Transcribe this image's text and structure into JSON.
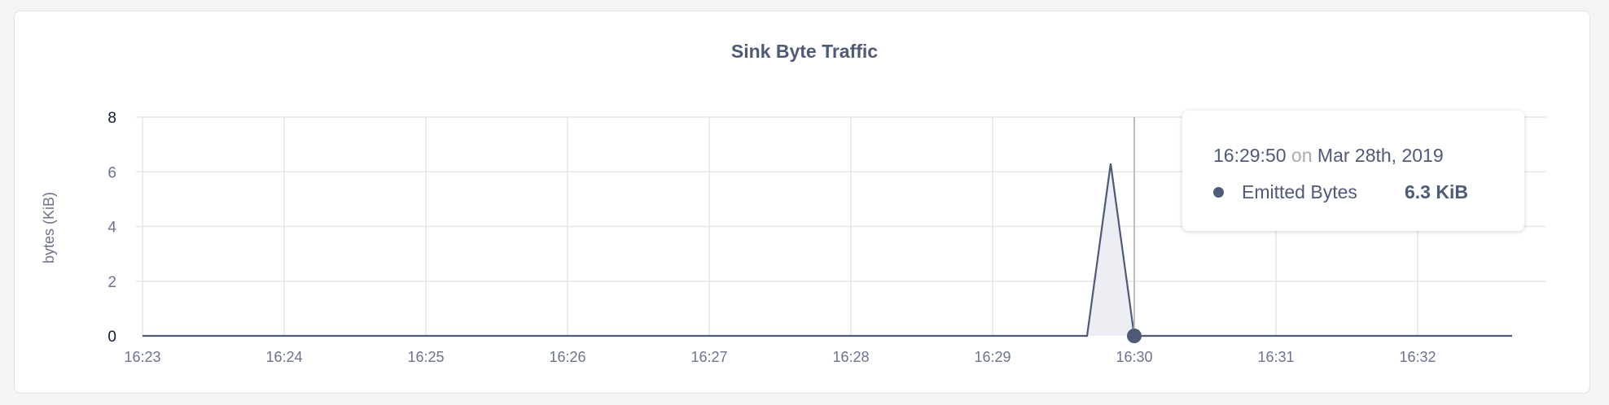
{
  "chart_data": {
    "type": "area",
    "title": "Sink Byte Traffic",
    "ylabel": "bytes (KiB)",
    "xlabel": "",
    "ylim": [
      0,
      8
    ],
    "yticks": [
      "0",
      "2",
      "4",
      "6",
      "8"
    ],
    "xlim": [
      "16:23:00",
      "16:32:40"
    ],
    "xticks": [
      "16:23",
      "16:24",
      "16:25",
      "16:26",
      "16:27",
      "16:28",
      "16:29",
      "16:30",
      "16:31",
      "16:32"
    ],
    "grid": true,
    "series": [
      {
        "name": "Emitted Bytes",
        "color": "#4f5a78",
        "points": [
          {
            "x": "16:23:00",
            "y": 0
          },
          {
            "x": "16:29:40",
            "y": 0
          },
          {
            "x": "16:29:50",
            "y": 6.3
          },
          {
            "x": "16:30:00",
            "y": 0
          },
          {
            "x": "16:32:40",
            "y": 0
          }
        ]
      }
    ],
    "hover_x": "16:30:00"
  },
  "tooltip": {
    "time": "16:29:50",
    "on": "on",
    "date": "Mar 28th, 2019",
    "series_name": "Emitted Bytes",
    "value": "6.3 KiB"
  }
}
